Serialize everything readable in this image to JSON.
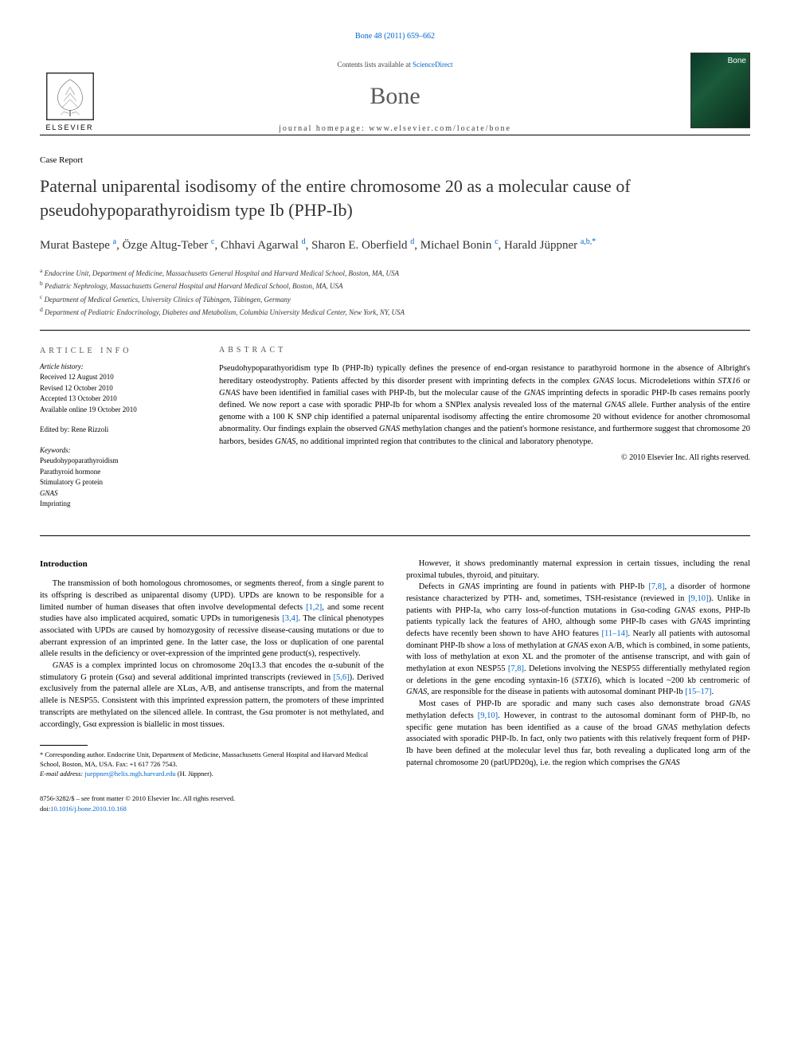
{
  "header": {
    "citation_link": "Bone 48 (2011) 659–662",
    "contents_line_prefix": "Contents lists available at ",
    "contents_line_link": "ScienceDirect",
    "journal_title": "Bone",
    "homepage_label": "journal homepage: www.elsevier.com/locate/bone",
    "elsevier_label": "ELSEVIER",
    "cover_label": "Bone"
  },
  "article": {
    "type": "Case Report",
    "title": "Paternal uniparental isodisomy of the entire chromosome 20 as a molecular cause of pseudohypoparathyroidism type Ib (PHP-Ib)",
    "authors_html": "Murat Bastepe <sup>a</sup>, Özge Altug-Teber <sup>c</sup>, Chhavi Agarwal <sup>d</sup>, Sharon E. Oberfield <sup>d</sup>, Michael Bonin <sup>c</sup>, Harald Jüppner <sup>a,b,*</sup>",
    "affiliations": [
      {
        "sup": "a",
        "text": "Endocrine Unit, Department of Medicine, Massachusetts General Hospital and Harvard Medical School, Boston, MA, USA"
      },
      {
        "sup": "b",
        "text": "Pediatric Nephrology, Massachusetts General Hospital and Harvard Medical School, Boston, MA, USA"
      },
      {
        "sup": "c",
        "text": "Department of Medical Genetics, University Clinics of Tübingen, Tübingen, Germany"
      },
      {
        "sup": "d",
        "text": "Department of Pediatric Endocrinology, Diabetes and Metabolism, Columbia University Medical Center, New York, NY, USA"
      }
    ]
  },
  "info": {
    "heading": "ARTICLE INFO",
    "history_label": "Article history:",
    "history": [
      "Received 12 August 2010",
      "Revised 12 October 2010",
      "Accepted 13 October 2010",
      "Available online 19 October 2010"
    ],
    "edited_by": "Edited by: Rene Rizzoli",
    "keywords_label": "Keywords:",
    "keywords": [
      "Pseudohypoparathyroidism",
      "Parathyroid hormone",
      "Stimulatory G protein",
      "GNAS",
      "Imprinting"
    ]
  },
  "abstract": {
    "heading": "ABSTRACT",
    "body": "Pseudohypoparathyoridism type Ib (PHP-Ib) typically defines the presence of end-organ resistance to parathyroid hormone in the absence of Albright's hereditary osteodystrophy. Patients affected by this disorder present with imprinting defects in the complex GNAS locus. Microdeletions within STX16 or GNAS have been identified in familial cases with PHP-Ib, but the molecular cause of the GNAS imprinting defects in sporadic PHP-Ib cases remains poorly defined. We now report a case with sporadic PHP-Ib for whom a SNPlex analysis revealed loss of the maternal GNAS allele. Further analysis of the entire genome with a 100 K SNP chip identified a paternal uniparental isodisomy affecting the entire chromosome 20 without evidence for another chromosomal abnormality. Our findings explain the observed GNAS methylation changes and the patient's hormone resistance, and furthermore suggest that chromosome 20 harbors, besides GNAS, no additional imprinted region that contributes to the clinical and laboratory phenotype.",
    "copyright": "© 2010 Elsevier Inc. All rights reserved."
  },
  "body": {
    "section_heading": "Introduction",
    "col1": {
      "p1_pre": "The transmission of both homologous chromosomes, or segments thereof, from a single parent to its offspring is described as uniparental disomy (UPD). UPDs are known to be responsible for a limited number of human diseases that often involve developmental defects ",
      "p1_ref1": "[1,2]",
      "p1_mid": ", and some recent studies have also implicated acquired, somatic UPDs in tumorigenesis ",
      "p1_ref2": "[3,4]",
      "p1_post": ". The clinical phenotypes associated with UPDs are caused by homozygosity of recessive disease-causing mutations or due to aberrant expression of an imprinted gene. In the latter case, the loss or duplication of one parental allele results in the deficiency or over-expression of the imprinted gene product(s), respectively.",
      "p2_pre": "GNAS is a complex imprinted locus on chromosome 20q13.3 that encodes the α-subunit of the stimulatory G protein (Gsα) and several additional imprinted transcripts (reviewed in ",
      "p2_ref1": "[5,6]",
      "p2_post": "). Derived exclusively from the paternal allele are XLαs, A/B, and antisense transcripts, and from the maternal allele is NESP55. Consistent with this imprinted expression pattern, the promoters of these imprinted transcripts are methylated on the silenced allele. In contrast, the Gsα promoter is not methylated, and accordingly, Gsα expression is biallelic in most tissues."
    },
    "col2": {
      "p0": "However, it shows predominantly maternal expression in certain tissues, including the renal proximal tubules, thyroid, and pituitary.",
      "p1_pre": "Defects in GNAS imprinting are found in patients with PHP-Ib ",
      "p1_ref1": "[7,8]",
      "p1_mid1": ", a disorder of hormone resistance characterized by PTH- and, sometimes, TSH-resistance (reviewed in ",
      "p1_ref2": "[9,10]",
      "p1_mid2": "). Unlike in patients with PHP-Ia, who carry loss-of-function mutations in Gsα-coding GNAS exons, PHP-Ib patients typically lack the features of AHO, although some PHP-Ib cases with GNAS imprinting defects have recently been shown to have AHO features ",
      "p1_ref3": "[11–14]",
      "p1_mid3": ". Nearly all patients with autosomal dominant PHP-Ib show a loss of methylation at GNAS exon A/B, which is combined, in some patients, with loss of methylation at exon XL and the promoter of the antisense transcript, and with gain of methylation at exon NESP55 ",
      "p1_ref4": "[7,8]",
      "p1_mid4": ". Deletions involving the NESP55 differentially methylated region or deletions in the gene encoding syntaxin-16 (STX16), which is located ~200 kb centromeric of GNAS, are responsible for the disease in patients with autosomal dominant PHP-Ib ",
      "p1_ref5": "[15–17]",
      "p1_post": ".",
      "p2_pre": "Most cases of PHP-Ib are sporadic and many such cases also demonstrate broad GNAS methylation defects ",
      "p2_ref1": "[9,10]",
      "p2_post": ". However, in contrast to the autosomal dominant form of PHP-Ib, no specific gene mutation has been identified as a cause of the broad GNAS methylation defects associated with sporadic PHP-Ib. In fact, only two patients with this relatively frequent form of PHP-Ib have been defined at the molecular level thus far, both revealing a duplicated long arm of the paternal chromosome 20 (patUPD20q), i.e. the region which comprises the GNAS"
    }
  },
  "footnote": {
    "corresponding": "* Corresponding author. Endocrine Unit, Department of Medicine, Massachusetts General Hospital and Harvard Medical School, Boston, MA, USA. Fax: +1 617 726 7543.",
    "email_label": "E-mail address: ",
    "email": "jueppner@helix.mgh.harvard.edu",
    "email_suffix": " (H. Jüppner)."
  },
  "footer": {
    "front_matter": "8756-3282/$ – see front matter © 2010 Elsevier Inc. All rights reserved.",
    "doi": "doi:10.1016/j.bone.2010.10.168"
  },
  "colors": {
    "link": "#0066cc",
    "text": "#000000",
    "heading_gray": "#555555",
    "journal_gray": "#5a5a5a"
  }
}
